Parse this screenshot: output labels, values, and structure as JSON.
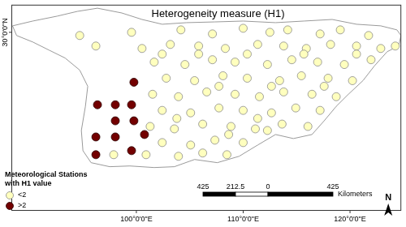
{
  "chart_data": {
    "type": "scatter",
    "title": "Heterogeneity measure (H1)",
    "xlim": [
      88.3,
      124.8
    ],
    "xticks": [
      {
        "value": 100,
        "label": "100°0'0\"E"
      },
      {
        "value": 110,
        "label": "110°0'0\"E"
      },
      {
        "value": 120,
        "label": "120°0'0\"E"
      }
    ],
    "ylim": [
      13.2,
      32.6
    ],
    "yticks": [
      {
        "value": 30,
        "label": "30°0'0\"N"
      }
    ],
    "grid": false,
    "legend": "bottom left",
    "legend_title": [
      "Meteorological Stations",
      "with H1 value"
    ],
    "outline": [
      [
        88.41,
        30.61
      ],
      [
        90.3,
        31.06
      ],
      [
        92.58,
        31.52
      ],
      [
        94.47,
        31.97
      ],
      [
        96.36,
        32.27
      ],
      [
        98.64,
        31.82
      ],
      [
        100.53,
        31.21
      ],
      [
        102.42,
        30.76
      ],
      [
        104.7,
        30.91
      ],
      [
        107.35,
        30.98
      ],
      [
        110.0,
        31.06
      ],
      [
        113.03,
        30.91
      ],
      [
        115.68,
        31.06
      ],
      [
        118.33,
        31.21
      ],
      [
        120.61,
        30.76
      ],
      [
        122.88,
        30.61
      ],
      [
        124.39,
        30.23
      ],
      [
        124.77,
        29.7
      ],
      [
        124.55,
        28.71
      ],
      [
        123.48,
        28.18
      ],
      [
        122.27,
        26.82
      ],
      [
        121.21,
        25.45
      ],
      [
        119.85,
        24.17
      ],
      [
        118.71,
        23.03
      ],
      [
        117.58,
        21.67
      ],
      [
        116.44,
        20.38
      ],
      [
        114.7,
        20.0
      ],
      [
        113.03,
        20.38
      ],
      [
        111.36,
        19.39
      ],
      [
        109.62,
        18.33
      ],
      [
        107.58,
        17.73
      ],
      [
        105.45,
        18.03
      ],
      [
        103.56,
        17.35
      ],
      [
        101.67,
        17.27
      ],
      [
        99.39,
        17.42
      ],
      [
        97.5,
        17.35
      ],
      [
        95.76,
        17.73
      ],
      [
        95.0,
        18.86
      ],
      [
        94.85,
        20.76
      ],
      [
        95.23,
        23.03
      ],
      [
        95.45,
        24.92
      ],
      [
        94.7,
        26.44
      ],
      [
        93.33,
        27.58
      ],
      [
        91.82,
        28.33
      ],
      [
        90.3,
        29.09
      ],
      [
        88.79,
        29.7
      ],
      [
        88.41,
        30.61
      ]
    ],
    "series": [
      {
        "name": "<2",
        "color": "#ffffbe",
        "marker": "circle",
        "x": [
          94.7,
          99.55,
          104.17,
          107.12,
          110.0,
          112.5,
          114.17,
          117.2,
          119.09,
          121.74,
          96.21,
          100.53,
          103.18,
          105.83,
          108.33,
          111.36,
          113.79,
          115.91,
          118.18,
          120.61,
          122.88,
          124.24,
          101.67,
          104.55,
          107.12,
          109.24,
          112.27,
          114.55,
          116.97,
          119.47,
          121.97,
          102.8,
          105.45,
          108.11,
          110.38,
          113.41,
          115.45,
          117.95,
          120.23,
          101.52,
          103.94,
          106.59,
          109.24,
          111.52,
          113.79,
          116.44,
          118.71,
          102.42,
          105.08,
          107.73,
          110.0,
          112.65,
          114.92,
          117.2,
          101.29,
          103.56,
          106.21,
          108.86,
          111.14,
          113.64,
          116.06,
          102.42,
          105.08,
          107.35,
          110.0,
          112.27,
          97.88,
          100.91,
          103.94,
          106.21,
          108.48,
          102.42,
          105.83,
          110.38,
          115.68,
          120.61,
          107.73,
          112.65,
          117.58,
          103.79,
          111.36,
          108.64
        ],
        "values": [
          29.7,
          30.0,
          30.23,
          29.85,
          30.38,
          30.0,
          30.23,
          29.85,
          30.23,
          29.7,
          28.71,
          28.48,
          28.86,
          28.71,
          28.48,
          28.86,
          28.71,
          28.48,
          28.86,
          28.71,
          28.48,
          28.71,
          27.2,
          26.97,
          27.42,
          27.2,
          26.97,
          27.42,
          27.2,
          26.97,
          27.42,
          25.68,
          25.45,
          25.91,
          25.68,
          25.45,
          25.91,
          25.68,
          25.45,
          24.17,
          23.94,
          24.39,
          24.17,
          23.94,
          24.39,
          24.17,
          23.94,
          22.65,
          22.42,
          22.88,
          22.65,
          22.42,
          22.88,
          22.65,
          21.14,
          20.91,
          21.36,
          21.14,
          20.91,
          21.36,
          21.14,
          19.62,
          19.39,
          19.85,
          19.62,
          20.76,
          18.48,
          18.48,
          18.33,
          18.64,
          18.48,
          27.95,
          27.95,
          27.95,
          27.95,
          27.95,
          24.92,
          24.92,
          24.92,
          21.89,
          21.89,
          20.38
        ]
      },
      {
        "name": ">2",
        "color": "#730000",
        "marker": "circle",
        "x": [
          99.77,
          96.36,
          98.03,
          99.55,
          98.03,
          99.77,
          96.21,
          98.03,
          100.76,
          99.55,
          96.21
        ],
        "values": [
          25.3,
          23.18,
          23.18,
          23.18,
          21.67,
          21.67,
          20.15,
          20.15,
          20.38,
          18.86,
          18.48
        ]
      }
    ],
    "scale_bar": {
      "ticks": [
        {
          "value": -425,
          "label": "425"
        },
        {
          "value": -212.5,
          "label": "212.5"
        },
        0,
        425
      ],
      "label": "Kilometers"
    },
    "north_label": "N"
  }
}
